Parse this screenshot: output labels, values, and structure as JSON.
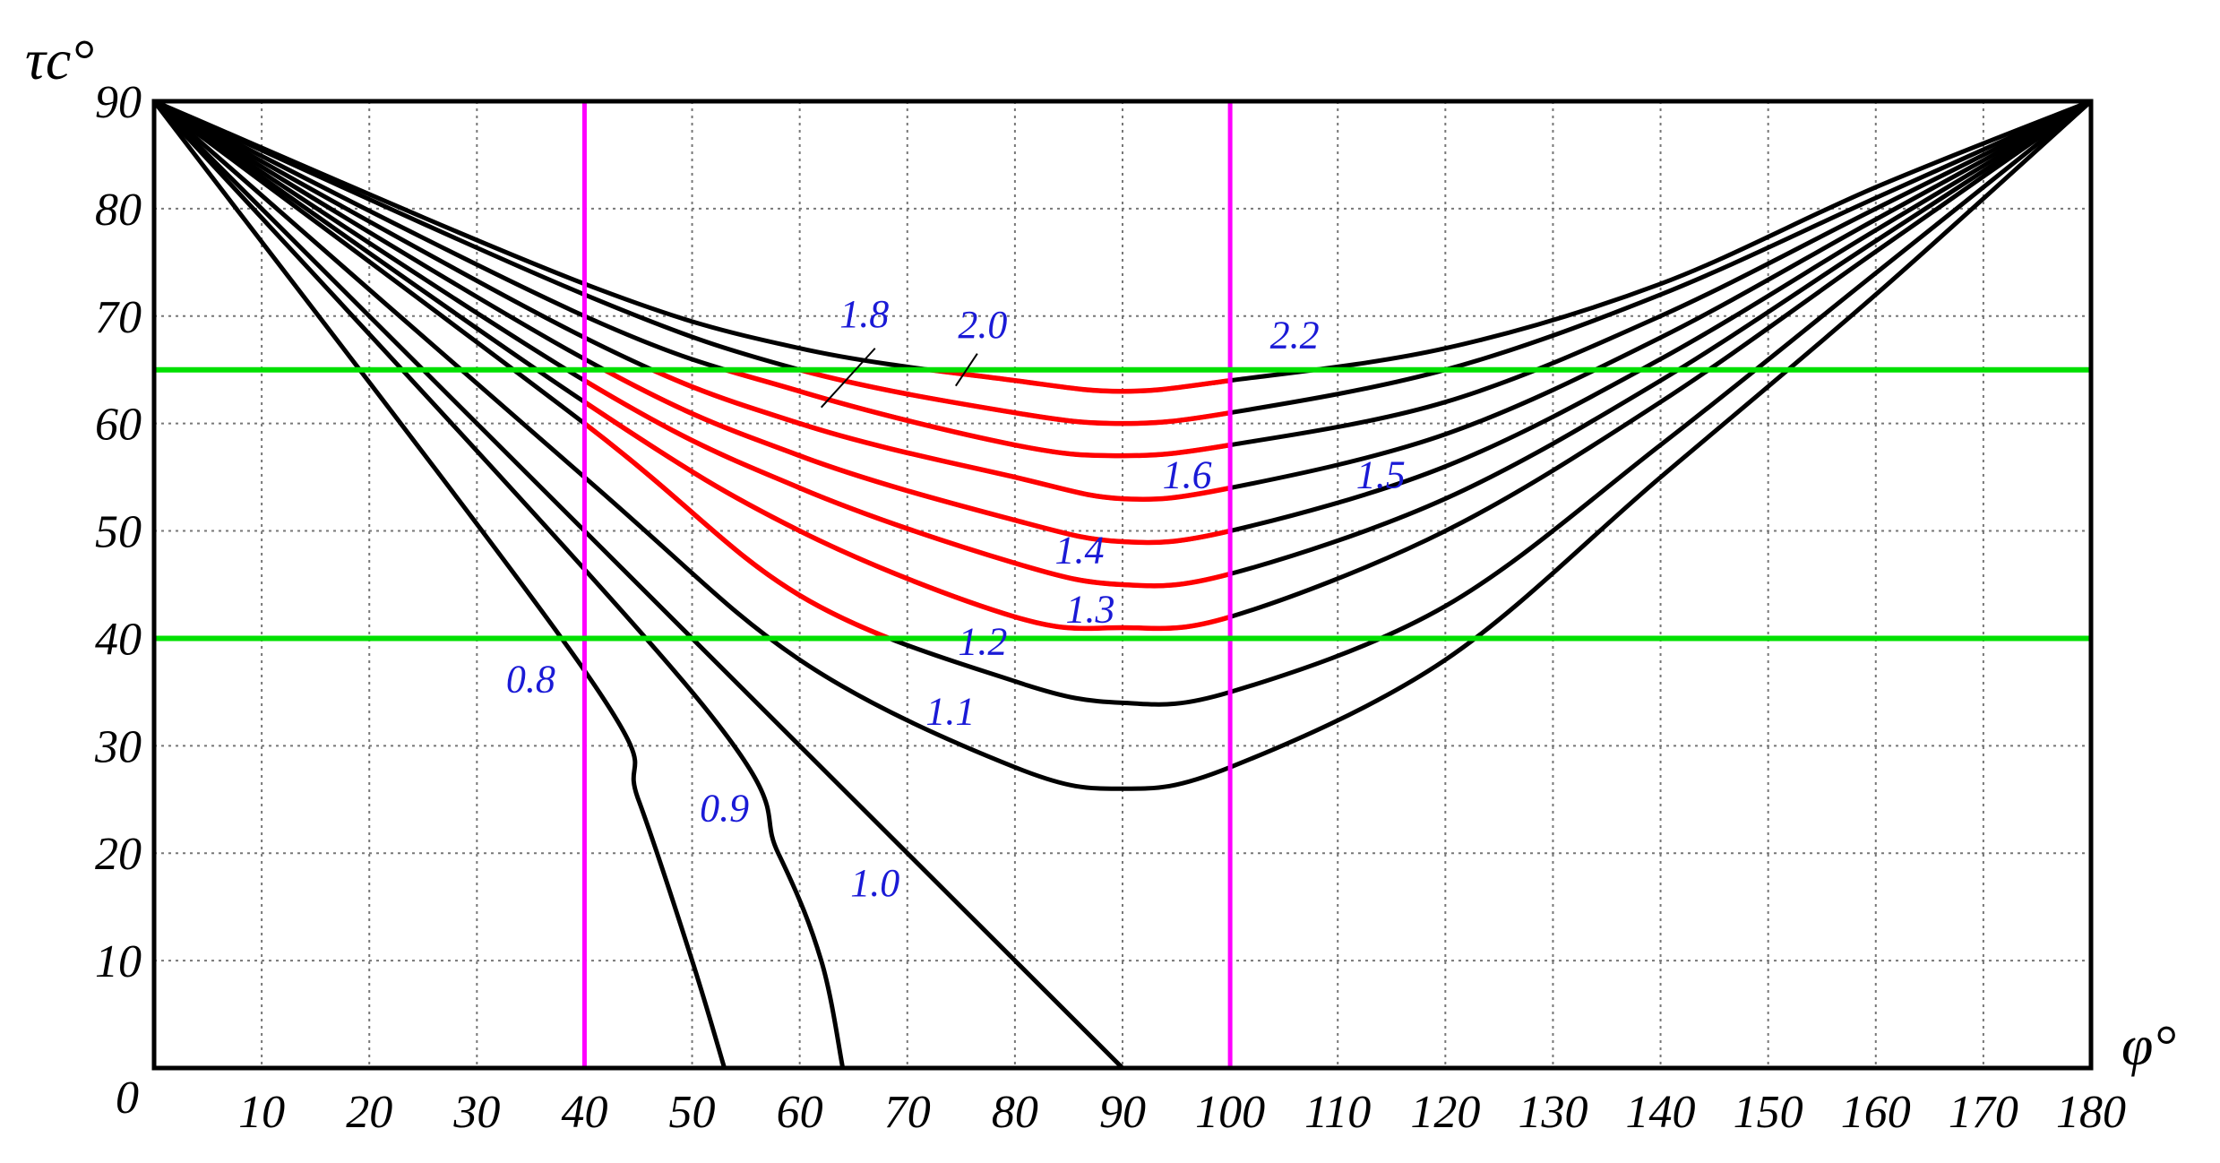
{
  "chart_data": {
    "type": "line",
    "xlabel": "φ°",
    "ylabel": "τc°",
    "xlim": [
      0,
      180
    ],
    "ylim": [
      0,
      90
    ],
    "x_origin_label": "0",
    "x_ticks": [
      "10",
      "20",
      "30",
      "40",
      "50",
      "60",
      "70",
      "80",
      "90",
      "100",
      "110",
      "120",
      "130",
      "140",
      "150",
      "160",
      "170",
      "180"
    ],
    "y_ticks": [
      "10",
      "20",
      "30",
      "40",
      "50",
      "60",
      "70",
      "80",
      "90"
    ],
    "grid": true,
    "colors": {
      "curve": "#000000",
      "highlight": "#ff0000",
      "vline": "#ff00ff",
      "hline": "#00e000",
      "label": "#1a1ad6"
    },
    "vertical_lines": [
      40,
      100
    ],
    "horizontal_lines": [
      40,
      65
    ],
    "series": [
      {
        "name": "0.8",
        "x": [
          0,
          40,
          45,
          50,
          53
        ],
        "y": [
          90,
          37,
          25,
          10,
          0
        ]
      },
      {
        "name": "0.9",
        "x": [
          0,
          50,
          58,
          62,
          64
        ],
        "y": [
          90,
          35,
          20,
          10,
          0
        ]
      },
      {
        "name": "1.0",
        "x": [
          0,
          90
        ],
        "y": [
          90,
          0
        ]
      },
      {
        "name": "1.1",
        "x": [
          0,
          40,
          60,
          80,
          90,
          100,
          120,
          140,
          160,
          180
        ],
        "y": [
          90,
          55,
          38,
          28,
          26,
          28,
          38,
          55,
          72,
          90
        ]
      },
      {
        "name": "1.2",
        "x": [
          0,
          40,
          60,
          80,
          90,
          100,
          120,
          140,
          160,
          180
        ],
        "y": [
          90,
          60,
          44,
          36,
          34,
          35,
          43,
          58,
          74,
          90
        ]
      },
      {
        "name": "1.3",
        "x": [
          0,
          40,
          60,
          80,
          90,
          100,
          120,
          140,
          160,
          180
        ],
        "y": [
          90,
          62,
          50,
          42,
          41,
          42,
          50,
          62,
          76,
          90
        ]
      },
      {
        "name": "1.4",
        "x": [
          0,
          40,
          60,
          80,
          90,
          100,
          120,
          140,
          160,
          180
        ],
        "y": [
          90,
          64,
          54,
          47,
          45,
          46,
          53,
          64,
          77,
          90
        ]
      },
      {
        "name": "1.5",
        "x": [
          0,
          40,
          60,
          80,
          90,
          100,
          120,
          140,
          160,
          180
        ],
        "y": [
          90,
          66,
          57,
          51,
          49,
          50,
          56,
          66,
          78,
          90
        ]
      },
      {
        "name": "1.6",
        "x": [
          0,
          40,
          60,
          80,
          90,
          100,
          120,
          140,
          160,
          180
        ],
        "y": [
          90,
          68,
          60,
          55,
          53,
          54,
          59,
          68,
          79,
          90
        ]
      },
      {
        "name": "1.8",
        "x": [
          0,
          40,
          60,
          80,
          90,
          100,
          120,
          140,
          160,
          180
        ],
        "y": [
          90,
          70,
          63,
          58,
          57,
          58,
          62,
          70,
          80,
          90
        ]
      },
      {
        "name": "2.0",
        "x": [
          0,
          40,
          60,
          80,
          90,
          100,
          120,
          140,
          160,
          180
        ],
        "y": [
          90,
          72,
          65,
          61,
          60,
          61,
          65,
          72,
          81,
          90
        ]
      },
      {
        "name": "2.2",
        "x": [
          0,
          40,
          60,
          80,
          90,
          100,
          120,
          140,
          160,
          180
        ],
        "y": [
          90,
          73,
          67,
          64,
          63,
          64,
          67,
          73,
          82,
          90
        ]
      }
    ],
    "annotations": [
      {
        "text": "0.8",
        "x": 35,
        "y": 35
      },
      {
        "text": "0.9",
        "x": 53,
        "y": 23
      },
      {
        "text": "1.0",
        "x": 67,
        "y": 16
      },
      {
        "text": "1.1",
        "x": 74,
        "y": 32
      },
      {
        "text": "1.2",
        "x": 77,
        "y": 38.5
      },
      {
        "text": "1.3",
        "x": 87,
        "y": 41.5
      },
      {
        "text": "1.4",
        "x": 86,
        "y": 47
      },
      {
        "text": "1.6",
        "x": 96,
        "y": 54
      },
      {
        "text": "1.5",
        "x": 114,
        "y": 54
      },
      {
        "text": "1.8",
        "x": 66,
        "y": 69
      },
      {
        "text": "2.0",
        "x": 77,
        "y": 68
      },
      {
        "text": "2.2",
        "x": 106,
        "y": 67
      }
    ]
  }
}
